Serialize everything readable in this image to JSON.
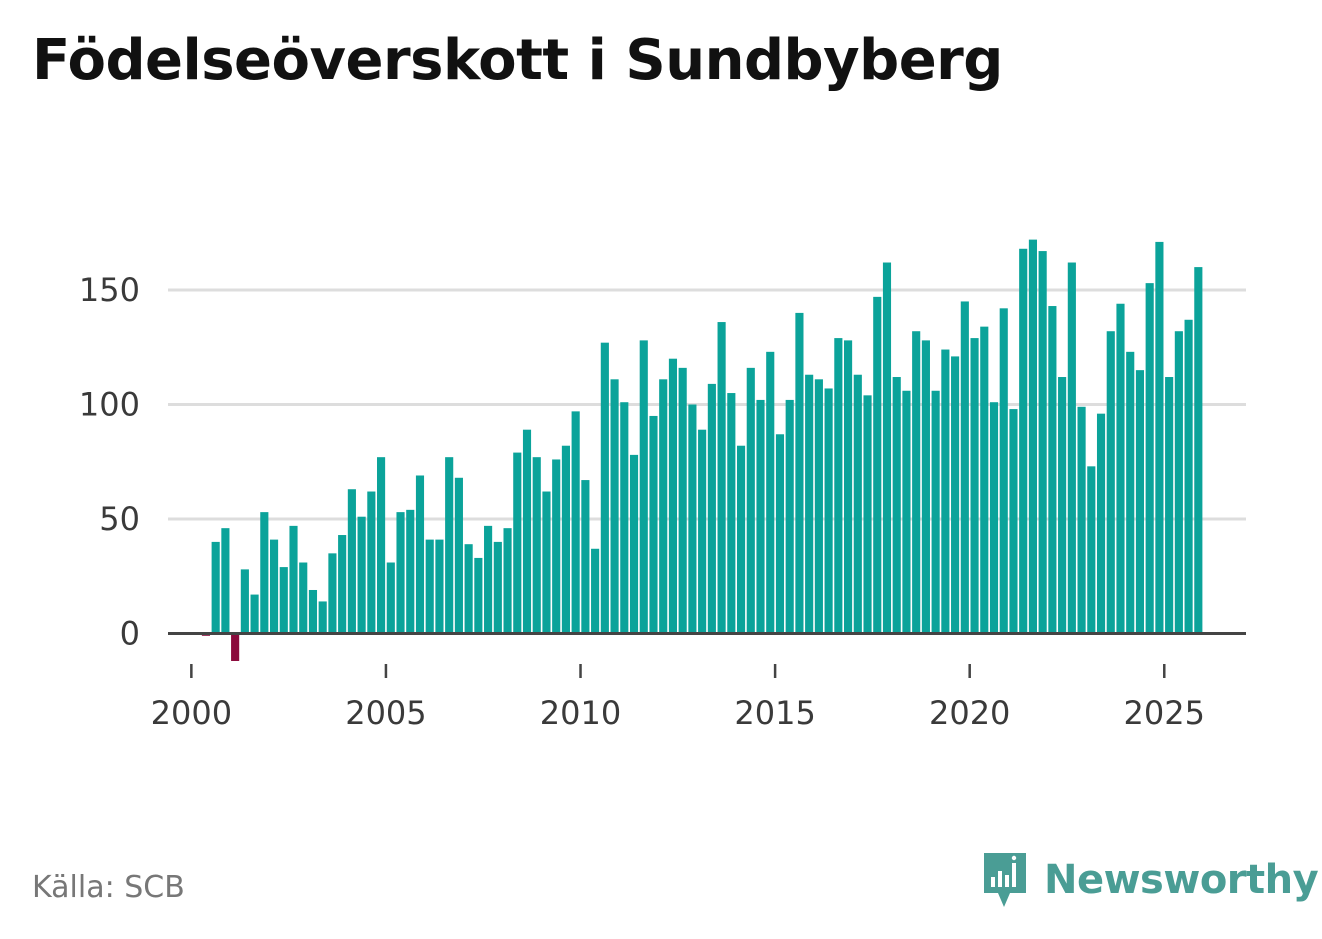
{
  "title": "Födelseöverskott i Sundbyberg",
  "source": "Källa: SCB",
  "brand": {
    "name": "Newsworthy",
    "icon": "newsworthy-logo-icon"
  },
  "colors": {
    "positive": "#0ba39a",
    "negative": "#8b0a3c",
    "grid": "#dddddd",
    "axis": "#444444",
    "brand": "#4a9d95"
  },
  "chart_data": {
    "type": "bar",
    "title": "Födelseöverskott i Sundbyberg",
    "xlabel": "",
    "ylabel": "",
    "ylim": [
      -12,
      175
    ],
    "xlim": [
      1999.4,
      2027.1
    ],
    "yticks": [
      0,
      50,
      100,
      150
    ],
    "ytick_labels": [
      "0",
      "50",
      "100",
      "150"
    ],
    "xticks": [
      2000,
      2005,
      2010,
      2015,
      2020,
      2025
    ],
    "xtick_labels": [
      "2000",
      "2005",
      "2010",
      "2015",
      "2020",
      "2025"
    ],
    "start_year": 2000,
    "periods_per_year": 4,
    "grid": true,
    "values": [
      0,
      -1,
      40,
      46,
      -12,
      28,
      17,
      53,
      41,
      29,
      47,
      31,
      19,
      14,
      35,
      43,
      63,
      51,
      62,
      77,
      31,
      53,
      54,
      69,
      41,
      41,
      77,
      68,
      39,
      33,
      47,
      40,
      46,
      79,
      89,
      77,
      62,
      76,
      82,
      97,
      67,
      37,
      127,
      111,
      101,
      78,
      128,
      95,
      111,
      120,
      116,
      100,
      89,
      109,
      136,
      105,
      82,
      116,
      102,
      123,
      87,
      102,
      140,
      113,
      111,
      107,
      129,
      128,
      113,
      104,
      147,
      162,
      112,
      106,
      132,
      128,
      106,
      124,
      121,
      145,
      129,
      134,
      101,
      142,
      98,
      168,
      172,
      167,
      143,
      112,
      162,
      99,
      73,
      96,
      132,
      144,
      123,
      115,
      153,
      171,
      112,
      132,
      137,
      160
    ]
  }
}
